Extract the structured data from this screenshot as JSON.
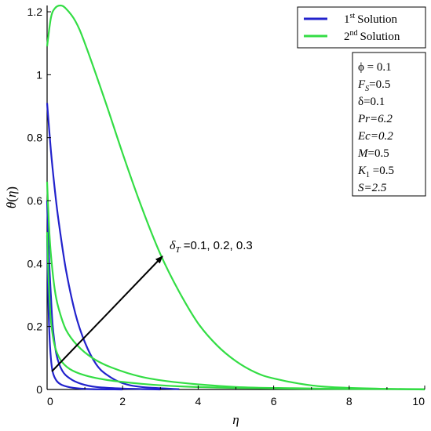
{
  "chart_data": {
    "type": "line",
    "xlabel_var": "η",
    "ylabel_var": "θ",
    "ylabel_arg": "η",
    "xlim": [
      0,
      10
    ],
    "ylim": [
      0,
      1.22
    ],
    "xticks": [
      "0",
      "2",
      "4",
      "6",
      "8",
      "10"
    ],
    "yticks": [
      "0",
      "0.2",
      "0.4",
      "0.6",
      "0.8",
      "1",
      "1.2"
    ],
    "grid": false,
    "legend_position": "top-right",
    "legend": [
      {
        "ordinal": "1",
        "sup": "st",
        "text": "Solution",
        "color": "#2222cc"
      },
      {
        "ordinal": "2",
        "sup": "nd",
        "text": "Solution",
        "color": "#33dd44"
      }
    ],
    "parameters": [
      {
        "sym": "ϕ",
        "value": " = 0.1"
      },
      {
        "sym": "F",
        "sub": "S",
        "value": "=0.5"
      },
      {
        "sym": "δ",
        "value": "=0.1"
      },
      {
        "sym": "Pr",
        "value": "=6.2"
      },
      {
        "sym": "Ec",
        "value": "=0.2"
      },
      {
        "sym": "M",
        "value": "=0.5"
      },
      {
        "sym": "K",
        "sub": "1",
        "value": " =0.5"
      },
      {
        "sym": "S",
        "value": "=2.5"
      }
    ],
    "annotation": {
      "sym": "δ",
      "sub": "T",
      "text": " =0.1, 0.2, 0.3"
    },
    "series": [
      {
        "solution": 1,
        "color": "#2222cc",
        "x": [
          0,
          0.1,
          0.2,
          0.3,
          0.5,
          0.75,
          1.0,
          1.3,
          1.6,
          2.0,
          2.5,
          3.5
        ],
        "y": [
          0.91,
          0.76,
          0.64,
          0.54,
          0.38,
          0.24,
          0.15,
          0.08,
          0.045,
          0.02,
          0.008,
          0.001
        ]
      },
      {
        "solution": 1,
        "color": "#2222cc",
        "x": [
          0,
          0.05,
          0.1,
          0.15,
          0.25,
          0.4,
          0.6,
          0.9,
          1.3,
          2.0,
          3.0
        ],
        "y": [
          0.6,
          0.42,
          0.3,
          0.2,
          0.11,
          0.06,
          0.035,
          0.018,
          0.008,
          0.003,
          0.0
        ]
      },
      {
        "solution": 1,
        "color": "#2222cc",
        "x": [
          0,
          0.03,
          0.06,
          0.1,
          0.15,
          0.25,
          0.4,
          0.7,
          1.2,
          2.0
        ],
        "y": [
          0.49,
          0.3,
          0.18,
          0.1,
          0.055,
          0.028,
          0.014,
          0.005,
          0.001,
          0.0
        ]
      },
      {
        "solution": 2,
        "color": "#33dd44",
        "x": [
          0,
          0.1,
          0.2,
          0.35,
          0.5,
          0.75,
          1.0,
          1.5,
          2.0,
          2.5,
          3.0,
          3.5,
          4.0,
          4.5,
          5.0,
          5.5,
          6.0,
          7.0,
          8.0,
          9.0,
          10.0
        ],
        "y": [
          1.09,
          1.18,
          1.21,
          1.22,
          1.21,
          1.17,
          1.1,
          0.93,
          0.75,
          0.58,
          0.43,
          0.31,
          0.21,
          0.14,
          0.09,
          0.055,
          0.035,
          0.013,
          0.005,
          0.002,
          0.0
        ]
      },
      {
        "solution": 2,
        "color": "#33dd44",
        "x": [
          0,
          0.05,
          0.1,
          0.2,
          0.3,
          0.5,
          0.8,
          1.2,
          1.7,
          2.5,
          3.5,
          5.0,
          6.5,
          8.0,
          10.0
        ],
        "y": [
          0.66,
          0.52,
          0.43,
          0.32,
          0.26,
          0.19,
          0.14,
          0.1,
          0.07,
          0.04,
          0.022,
          0.008,
          0.004,
          0.002,
          0.001
        ]
      },
      {
        "solution": 2,
        "color": "#33dd44",
        "x": [
          0,
          0.03,
          0.06,
          0.1,
          0.2,
          0.35,
          0.6,
          1.0,
          1.6,
          2.5,
          3.5,
          5.0,
          7.0,
          10.0
        ],
        "y": [
          0.5,
          0.38,
          0.3,
          0.22,
          0.14,
          0.095,
          0.065,
          0.045,
          0.03,
          0.018,
          0.01,
          0.005,
          0.002,
          0.001
        ]
      }
    ]
  }
}
